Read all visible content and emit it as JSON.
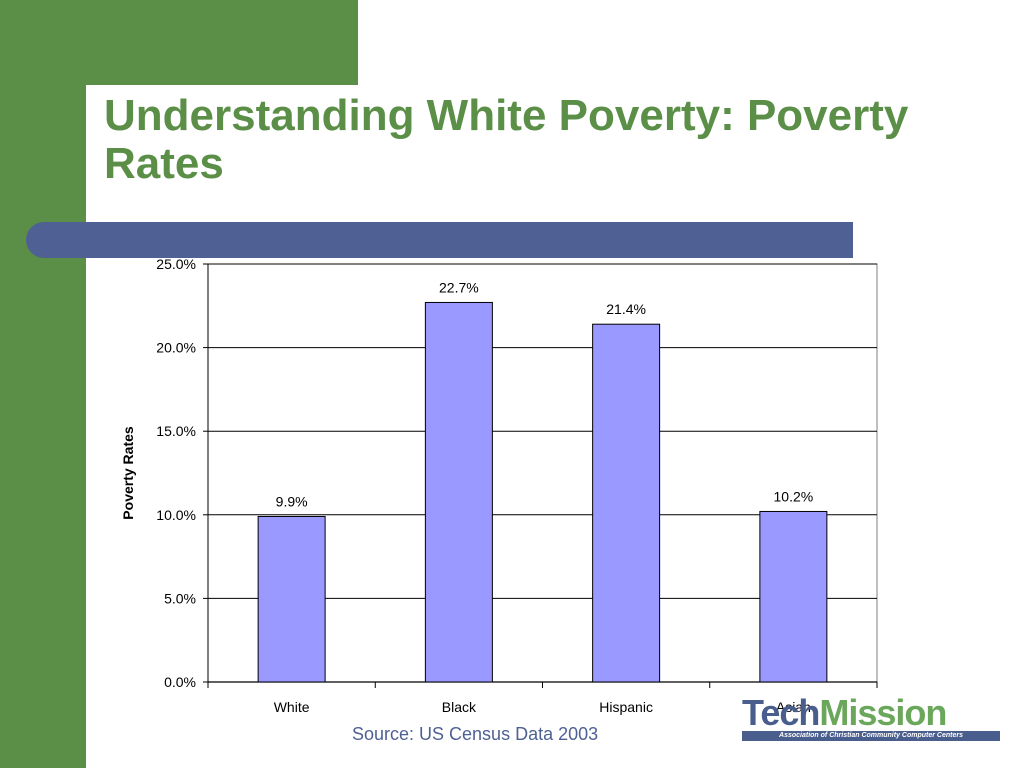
{
  "slide": {
    "title": "Understanding White Poverty: Poverty Rates",
    "source": "Source: US Census Data 2003"
  },
  "logo": {
    "word_a": "Tech",
    "word_b": "Mission",
    "tagline": "Association of Christian Community Computer Centers"
  },
  "colors": {
    "green": "#5b8f48",
    "blue_band": "#4f6194",
    "bar_fill": "#9999ff",
    "source_text": "#4f6194"
  },
  "chart_data": {
    "type": "bar",
    "categories": [
      "White",
      "Black",
      "Hispanic",
      "Asian"
    ],
    "values": [
      9.9,
      22.7,
      21.4,
      10.2
    ],
    "data_labels": [
      "9.9%",
      "22.7%",
      "21.4%",
      "10.2%"
    ],
    "ylabel": "Poverty Rates",
    "xlabel": "",
    "ylim": [
      0,
      25
    ],
    "yticks": [
      0,
      5,
      10,
      15,
      20,
      25
    ],
    "ytick_labels": [
      "0.0%",
      "5.0%",
      "10.0%",
      "15.0%",
      "20.0%",
      "25.0%"
    ],
    "grid": true,
    "legend": "none"
  }
}
